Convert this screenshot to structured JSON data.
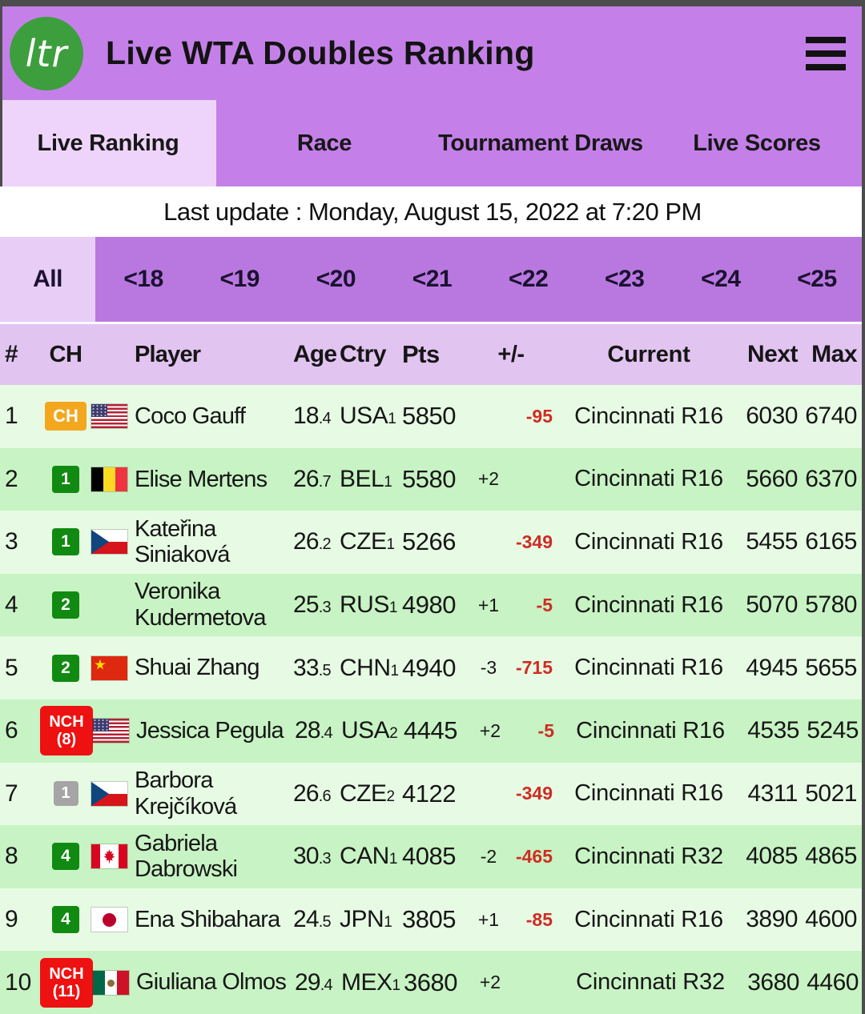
{
  "header": {
    "logo_text": "ltr",
    "title": "Live WTA Doubles Ranking"
  },
  "tabs": [
    {
      "label": "Live Ranking",
      "active": true
    },
    {
      "label": "Race",
      "active": false
    },
    {
      "label": "Tournament Draws",
      "active": false
    },
    {
      "label": "Live Scores",
      "active": false
    }
  ],
  "last_update": "Last update : Monday, August 15, 2022 at 7:20 PM",
  "age_filters": [
    {
      "label": "All",
      "active": true
    },
    {
      "label": "<18",
      "active": false
    },
    {
      "label": "<19",
      "active": false
    },
    {
      "label": "<20",
      "active": false
    },
    {
      "label": "<21",
      "active": false
    },
    {
      "label": "<22",
      "active": false
    },
    {
      "label": "<23",
      "active": false
    },
    {
      "label": "<24",
      "active": false
    },
    {
      "label": "<25",
      "active": false
    }
  ],
  "colors": {
    "header_purple": "#c480e8",
    "filter_purple": "#b978e0",
    "active_tab": "#eed4fa",
    "row_light_green": "#e7fbe4",
    "row_dark_green": "#c8f3c4",
    "negative_red": "#cf2c24",
    "badge_orange": "#f3a71f",
    "badge_green": "#118a11",
    "badge_gray": "#a5a5a5",
    "badge_red": "#ee1111",
    "logo_green": "#3d9e3d"
  },
  "table": {
    "headers": {
      "rank": "#",
      "ch": "CH",
      "player": "Player",
      "age": "Age",
      "ctry": "Ctry",
      "pts": "Pts",
      "delta": "+/-",
      "current": "Current",
      "next": "Next",
      "max": "Max"
    },
    "rows": [
      {
        "rank": "1",
        "badge": {
          "style": "ch",
          "lines": [
            "CH"
          ]
        },
        "flag": "USA",
        "name": "Coco Gauff",
        "age_main": "18",
        "age_dec": "4",
        "ctry": "USA",
        "ctry_sub": "1",
        "pts": "5850",
        "delta_plain": "",
        "delta_red": "-95",
        "current": "Cincinnati R16",
        "next": "6030",
        "max": "6740"
      },
      {
        "rank": "2",
        "badge": {
          "style": "green",
          "lines": [
            "1"
          ]
        },
        "flag": "BEL",
        "name": "Elise Mertens",
        "age_main": "26",
        "age_dec": "7",
        "ctry": "BEL",
        "ctry_sub": "1",
        "pts": "5580",
        "delta_plain": "+2",
        "delta_red": "",
        "current": "Cincinnati R16",
        "next": "5660",
        "max": "6370"
      },
      {
        "rank": "3",
        "badge": {
          "style": "green",
          "lines": [
            "1"
          ]
        },
        "flag": "CZE",
        "name": "Kateřina Siniaková",
        "age_main": "26",
        "age_dec": "2",
        "ctry": "CZE",
        "ctry_sub": "1",
        "pts": "5266",
        "delta_plain": "",
        "delta_red": "-349",
        "current": "Cincinnati R16",
        "next": "5455",
        "max": "6165"
      },
      {
        "rank": "4",
        "badge": {
          "style": "green",
          "lines": [
            "2"
          ]
        },
        "flag": "",
        "name": "Veronika Kudermetova",
        "age_main": "25",
        "age_dec": "3",
        "ctry": "RUS",
        "ctry_sub": "1",
        "pts": "4980",
        "delta_plain": "+1",
        "delta_red": "-5",
        "current": "Cincinnati R16",
        "next": "5070",
        "max": "5780"
      },
      {
        "rank": "5",
        "badge": {
          "style": "green",
          "lines": [
            "2"
          ]
        },
        "flag": "CHN",
        "name": "Shuai Zhang",
        "age_main": "33",
        "age_dec": "5",
        "ctry": "CHN",
        "ctry_sub": "1",
        "pts": "4940",
        "delta_plain": "-3",
        "delta_red": "-715",
        "current": "Cincinnati R16",
        "next": "4945",
        "max": "5655"
      },
      {
        "rank": "6",
        "badge": {
          "style": "nch",
          "lines": [
            "NCH",
            "(8)"
          ]
        },
        "flag": "USA",
        "name": "Jessica Pegula",
        "age_main": "28",
        "age_dec": "4",
        "ctry": "USA",
        "ctry_sub": "2",
        "pts": "4445",
        "delta_plain": "+2",
        "delta_red": "-5",
        "current": "Cincinnati R16",
        "next": "4535",
        "max": "5245"
      },
      {
        "rank": "7",
        "badge": {
          "style": "gray",
          "lines": [
            "1"
          ]
        },
        "flag": "CZE",
        "name": "Barbora Krejčíková",
        "age_main": "26",
        "age_dec": "6",
        "ctry": "CZE",
        "ctry_sub": "2",
        "pts": "4122",
        "delta_plain": "",
        "delta_red": "-349",
        "current": "Cincinnati R16",
        "next": "4311",
        "max": "5021"
      },
      {
        "rank": "8",
        "badge": {
          "style": "green",
          "lines": [
            "4"
          ]
        },
        "flag": "CAN",
        "name": "Gabriela Dabrowski",
        "age_main": "30",
        "age_dec": "3",
        "ctry": "CAN",
        "ctry_sub": "1",
        "pts": "4085",
        "delta_plain": "-2",
        "delta_red": "-465",
        "current": "Cincinnati R32",
        "next": "4085",
        "max": "4865"
      },
      {
        "rank": "9",
        "badge": {
          "style": "green",
          "lines": [
            "4"
          ]
        },
        "flag": "JPN",
        "name": "Ena Shibahara",
        "age_main": "24",
        "age_dec": "5",
        "ctry": "JPN",
        "ctry_sub": "1",
        "pts": "3805",
        "delta_plain": "+1",
        "delta_red": "-85",
        "current": "Cincinnati R16",
        "next": "3890",
        "max": "4600"
      },
      {
        "rank": "10",
        "badge": {
          "style": "nch",
          "lines": [
            "NCH",
            "(11)"
          ]
        },
        "flag": "MEX",
        "name": "Giuliana Olmos",
        "age_main": "29",
        "age_dec": "4",
        "ctry": "MEX",
        "ctry_sub": "1",
        "pts": "3680",
        "delta_plain": "+2",
        "delta_red": "",
        "current": "Cincinnati R32",
        "next": "3680",
        "max": "4460"
      }
    ]
  }
}
